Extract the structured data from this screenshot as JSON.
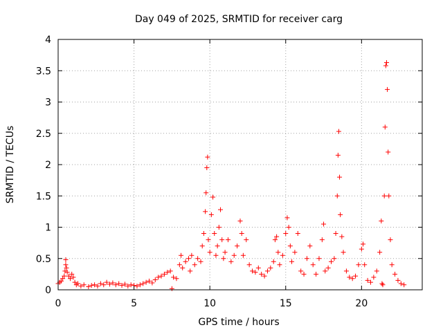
{
  "chart_data": {
    "type": "scatter",
    "title": "Day 049 of 2025, SRMTID for receiver carg",
    "xlabel": "GPS time / hours",
    "ylabel": "SRMTID / TECUs",
    "xlim": [
      0,
      24
    ],
    "ylim": [
      0,
      4
    ],
    "xticks": [
      0,
      5,
      10,
      15,
      20
    ],
    "xtick_labels": [
      "0",
      "5",
      "10",
      "15",
      "20"
    ],
    "yticks": [
      0,
      0.5,
      1,
      1.5,
      2,
      2.5,
      3,
      3.5,
      4
    ],
    "ytick_labels": [
      "0",
      "0.5",
      "1",
      "1.5",
      "2",
      "2.5",
      "3",
      "3.5",
      "4"
    ],
    "grid": true,
    "marker": "+",
    "series": [
      {
        "name": "SRMTID",
        "color": "#ff0000",
        "points": [
          [
            0.0,
            0.1
          ],
          [
            0.1,
            0.12
          ],
          [
            0.2,
            0.14
          ],
          [
            0.3,
            0.18
          ],
          [
            0.4,
            0.22
          ],
          [
            0.45,
            0.3
          ],
          [
            0.5,
            0.4
          ],
          [
            0.5,
            0.48
          ],
          [
            0.55,
            0.35
          ],
          [
            0.6,
            0.28
          ],
          [
            0.7,
            0.22
          ],
          [
            0.8,
            0.18
          ],
          [
            0.9,
            0.25
          ],
          [
            1.0,
            0.2
          ],
          [
            1.1,
            0.12
          ],
          [
            1.2,
            0.08
          ],
          [
            1.3,
            0.1
          ],
          [
            1.5,
            0.06
          ],
          [
            1.7,
            0.08
          ],
          [
            2.0,
            0.05
          ],
          [
            2.2,
            0.07
          ],
          [
            2.4,
            0.08
          ],
          [
            2.6,
            0.06
          ],
          [
            2.8,
            0.1
          ],
          [
            3.0,
            0.08
          ],
          [
            3.2,
            0.12
          ],
          [
            3.4,
            0.09
          ],
          [
            3.6,
            0.11
          ],
          [
            3.8,
            0.08
          ],
          [
            4.0,
            0.1
          ],
          [
            4.2,
            0.07
          ],
          [
            4.4,
            0.09
          ],
          [
            4.6,
            0.06
          ],
          [
            4.8,
            0.08
          ],
          [
            5.0,
            0.07
          ],
          [
            5.2,
            0.06
          ],
          [
            5.4,
            0.08
          ],
          [
            5.6,
            0.1
          ],
          [
            5.8,
            0.12
          ],
          [
            6.0,
            0.14
          ],
          [
            6.2,
            0.11
          ],
          [
            6.4,
            0.16
          ],
          [
            6.6,
            0.2
          ],
          [
            6.8,
            0.22
          ],
          [
            7.0,
            0.25
          ],
          [
            7.2,
            0.28
          ],
          [
            7.4,
            0.3
          ],
          [
            7.5,
            0.02
          ],
          [
            7.6,
            0.2
          ],
          [
            7.8,
            0.18
          ],
          [
            8.0,
            0.4
          ],
          [
            8.1,
            0.55
          ],
          [
            8.2,
            0.35
          ],
          [
            8.4,
            0.45
          ],
          [
            8.6,
            0.5
          ],
          [
            8.7,
            0.3
          ],
          [
            8.8,
            0.55
          ],
          [
            9.0,
            0.4
          ],
          [
            9.2,
            0.5
          ],
          [
            9.4,
            0.45
          ],
          [
            9.5,
            0.7
          ],
          [
            9.6,
            0.9
          ],
          [
            9.7,
            1.25
          ],
          [
            9.75,
            1.55
          ],
          [
            9.8,
            1.95
          ],
          [
            9.85,
            2.12
          ],
          [
            9.9,
            0.8
          ],
          [
            10.0,
            0.6
          ],
          [
            10.1,
            1.2
          ],
          [
            10.2,
            1.48
          ],
          [
            10.3,
            0.9
          ],
          [
            10.4,
            0.55
          ],
          [
            10.5,
            0.7
          ],
          [
            10.6,
            1.0
          ],
          [
            10.7,
            1.28
          ],
          [
            10.8,
            0.8
          ],
          [
            10.9,
            0.5
          ],
          [
            11.0,
            0.6
          ],
          [
            11.2,
            0.8
          ],
          [
            11.4,
            0.45
          ],
          [
            11.6,
            0.55
          ],
          [
            11.8,
            0.7
          ],
          [
            12.0,
            1.1
          ],
          [
            12.1,
            0.9
          ],
          [
            12.2,
            0.55
          ],
          [
            12.4,
            0.8
          ],
          [
            12.6,
            0.4
          ],
          [
            12.8,
            0.3
          ],
          [
            13.0,
            0.28
          ],
          [
            13.2,
            0.35
          ],
          [
            13.4,
            0.25
          ],
          [
            13.6,
            0.22
          ],
          [
            13.8,
            0.3
          ],
          [
            14.0,
            0.35
          ],
          [
            14.2,
            0.45
          ],
          [
            14.3,
            0.8
          ],
          [
            14.4,
            0.85
          ],
          [
            14.5,
            0.6
          ],
          [
            14.6,
            0.4
          ],
          [
            14.8,
            0.55
          ],
          [
            15.0,
            0.9
          ],
          [
            15.1,
            1.15
          ],
          [
            15.2,
            1.0
          ],
          [
            15.3,
            0.7
          ],
          [
            15.4,
            0.45
          ],
          [
            15.6,
            0.6
          ],
          [
            15.8,
            0.9
          ],
          [
            16.0,
            0.3
          ],
          [
            16.2,
            0.25
          ],
          [
            16.4,
            0.5
          ],
          [
            16.6,
            0.7
          ],
          [
            16.8,
            0.4
          ],
          [
            17.0,
            0.25
          ],
          [
            17.2,
            0.5
          ],
          [
            17.4,
            0.8
          ],
          [
            17.5,
            1.05
          ],
          [
            17.6,
            0.3
          ],
          [
            17.8,
            0.35
          ],
          [
            18.0,
            0.45
          ],
          [
            18.2,
            0.5
          ],
          [
            18.3,
            0.9
          ],
          [
            18.4,
            1.5
          ],
          [
            18.45,
            2.15
          ],
          [
            18.5,
            2.53
          ],
          [
            18.55,
            1.8
          ],
          [
            18.6,
            1.2
          ],
          [
            18.7,
            0.85
          ],
          [
            18.8,
            0.6
          ],
          [
            19.0,
            0.3
          ],
          [
            19.2,
            0.2
          ],
          [
            19.4,
            0.18
          ],
          [
            19.6,
            0.22
          ],
          [
            19.8,
            0.4
          ],
          [
            20.0,
            0.65
          ],
          [
            20.1,
            0.73
          ],
          [
            20.2,
            0.4
          ],
          [
            20.4,
            0.15
          ],
          [
            20.6,
            0.12
          ],
          [
            20.8,
            0.2
          ],
          [
            21.0,
            0.3
          ],
          [
            21.2,
            0.6
          ],
          [
            21.3,
            1.1
          ],
          [
            21.35,
            0.1
          ],
          [
            21.4,
            0.08
          ],
          [
            21.5,
            1.5
          ],
          [
            21.55,
            2.6
          ],
          [
            21.6,
            3.58
          ],
          [
            21.65,
            3.63
          ],
          [
            21.7,
            3.2
          ],
          [
            21.75,
            2.2
          ],
          [
            21.8,
            1.5
          ],
          [
            21.9,
            0.8
          ],
          [
            22.0,
            0.4
          ],
          [
            22.2,
            0.25
          ],
          [
            22.4,
            0.15
          ],
          [
            22.6,
            0.1
          ],
          [
            22.8,
            0.08
          ]
        ]
      }
    ]
  }
}
